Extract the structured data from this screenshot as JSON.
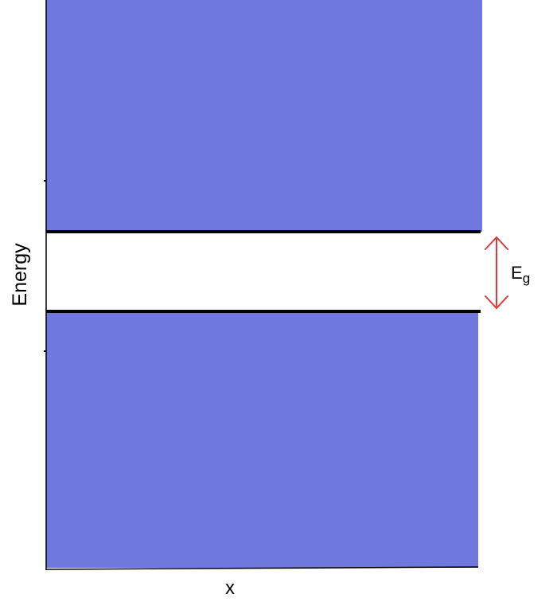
{
  "labels": {
    "y_axis": "Energy",
    "x_axis": "x",
    "gap_main": "E",
    "gap_sub": "g"
  },
  "colors": {
    "band_fill": "#6f78dc",
    "band_edge": "#000000",
    "gap_arrow": "#e03c3c",
    "axis": "#000000",
    "background": "#ffffff"
  }
}
